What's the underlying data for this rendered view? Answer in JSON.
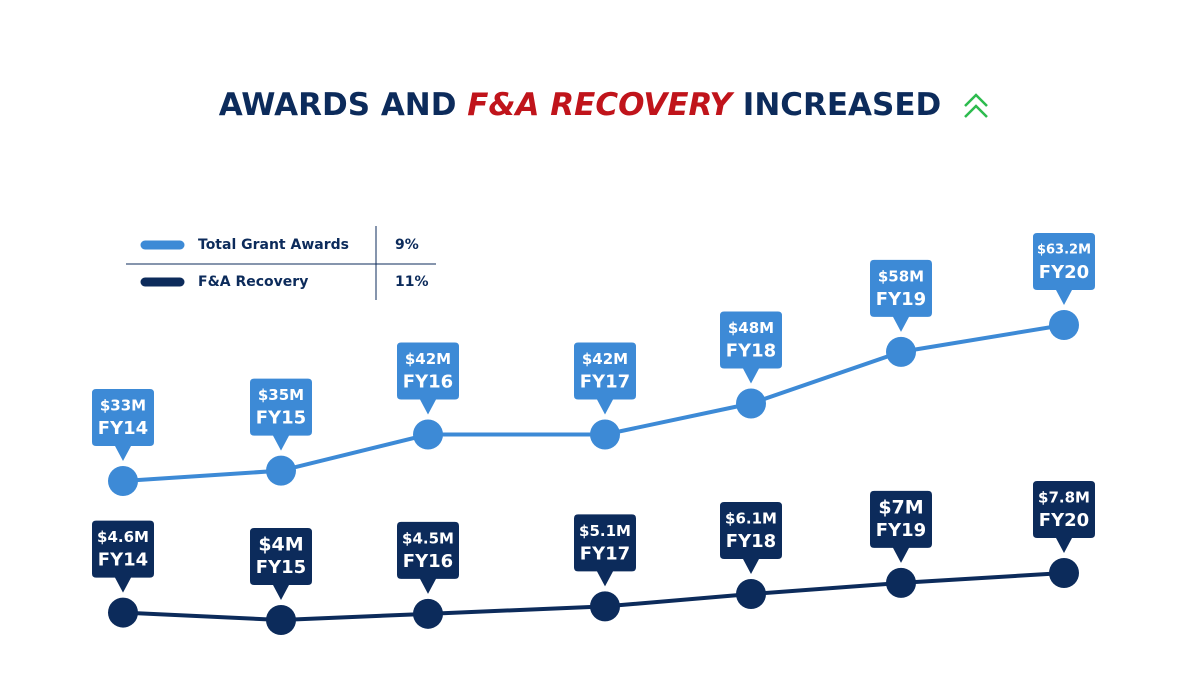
{
  "chart_data": {
    "type": "line",
    "title_parts": [
      "AWARDS AND",
      "F&A RECOVERY",
      "INCREASED"
    ],
    "categories": [
      "FY14",
      "FY15",
      "FY16",
      "FY17",
      "FY18",
      "FY19",
      "FY20"
    ],
    "series": [
      {
        "name": "Total Grant Awards",
        "change": "9%",
        "color": "#3d8ad6",
        "values": [
          33,
          35,
          42,
          42,
          48,
          58,
          63.2
        ],
        "value_labels": [
          "$33M",
          "$35M",
          "$42M",
          "$42M",
          "$48M",
          "$58M",
          "$63.2M"
        ]
      },
      {
        "name": "F&A Recovery",
        "change": "11%",
        "color": "#0c2b5b",
        "values": [
          4.6,
          4,
          4.5,
          5.1,
          6.1,
          7,
          7.8
        ],
        "value_labels": [
          "$4.6M",
          "$4M",
          "$4.5M",
          "$5.1M",
          "$6.1M",
          "$7M",
          "$7.8M"
        ]
      }
    ]
  }
}
